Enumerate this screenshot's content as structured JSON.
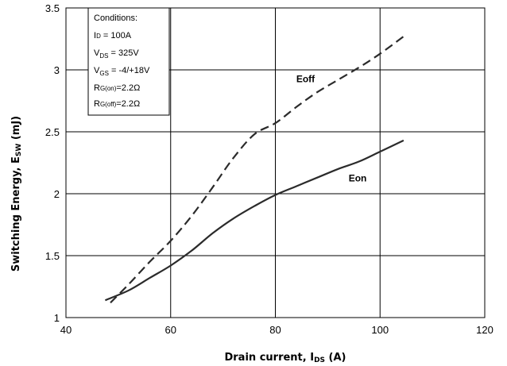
{
  "chart_data": {
    "type": "line",
    "title": "",
    "xlabel": {
      "main": "Drain current, I",
      "sub": "DS",
      "tail": " (A)"
    },
    "ylabel": {
      "main": "Switching Energy, E",
      "sub": "SW",
      "tail": " (mJ)"
    },
    "xlim": [
      40,
      120
    ],
    "ylim": [
      1,
      3.5
    ],
    "xticks": [
      40,
      60,
      80,
      100,
      120
    ],
    "yticks": [
      1,
      1.5,
      2,
      2.5,
      3,
      3.5
    ],
    "grid": true,
    "series": [
      {
        "name": "Eoff",
        "style": "dashed",
        "color": "#2b2b2b",
        "x": [
          48.5,
          52,
          56,
          60,
          64,
          68,
          72,
          76,
          80,
          84,
          88,
          92,
          96,
          100,
          104.5
        ],
        "y": [
          1.12,
          1.27,
          1.45,
          1.62,
          1.82,
          2.05,
          2.29,
          2.48,
          2.57,
          2.7,
          2.82,
          2.92,
          3.02,
          3.13,
          3.27
        ]
      },
      {
        "name": "Eon",
        "style": "solid",
        "color": "#2b2b2b",
        "x": [
          47.5,
          52,
          56,
          60,
          64,
          68,
          72,
          76,
          80,
          84,
          88,
          92,
          96,
          100,
          104.5
        ],
        "y": [
          1.14,
          1.22,
          1.32,
          1.42,
          1.54,
          1.68,
          1.8,
          1.9,
          1.99,
          2.06,
          2.13,
          2.2,
          2.26,
          2.34,
          2.43
        ]
      }
    ],
    "conditions_box": {
      "title": "Conditions:",
      "lines": [
        {
          "pre": "I",
          "sub": "D",
          "post": " = 100A"
        },
        {
          "pre": "V",
          "sub": "DS",
          "post": " = 325V"
        },
        {
          "pre": "V",
          "sub": "GS",
          "post": " = -4/+18V"
        },
        {
          "pre": "R",
          "sub": "G(on)",
          "post": "=2.2Ω"
        },
        {
          "pre": "R",
          "sub": "G(off)",
          "post": "=2.2Ω"
        }
      ]
    }
  }
}
